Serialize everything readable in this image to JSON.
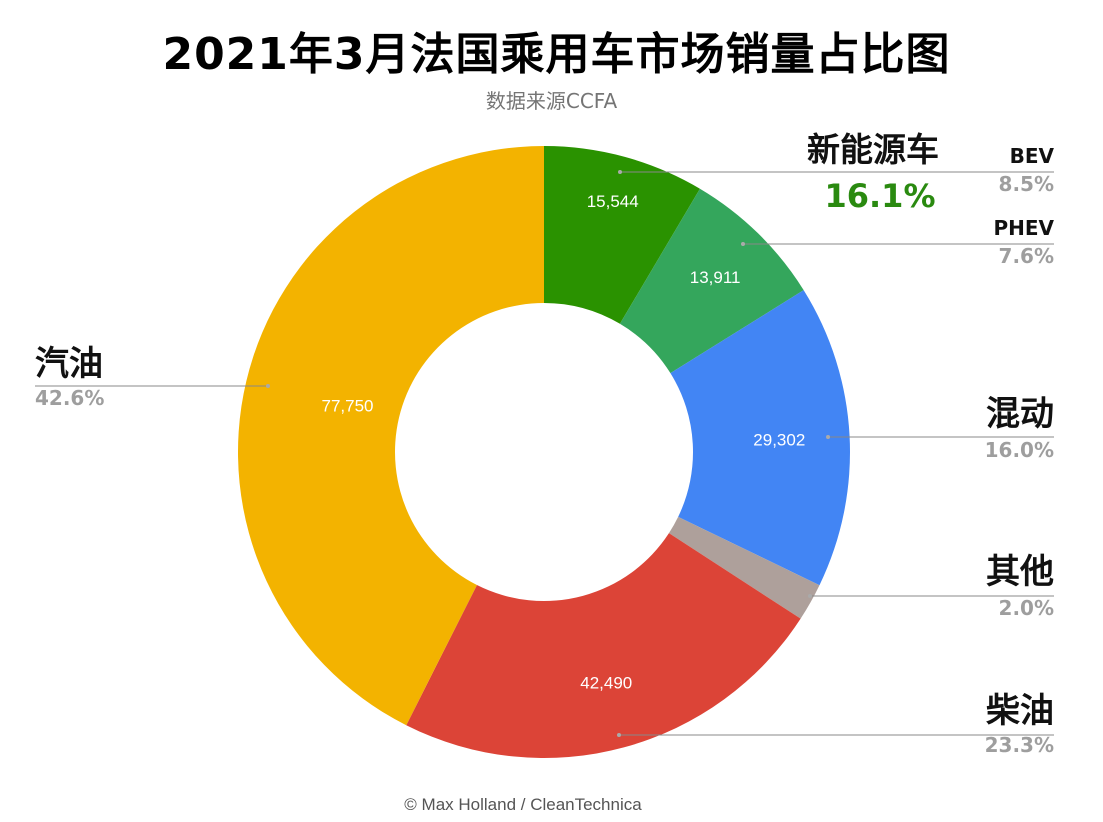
{
  "title": "2021年3月法国乘用车市场销量占比图",
  "subtitle": "数据来源CCFA",
  "credit": "© Max Holland / CleanTechnica",
  "group_label": "新能源车",
  "group_pct": "16.1%",
  "colors": {
    "bev": "#2a9200",
    "phev": "#34a65c",
    "hybrid": "#4285f4",
    "other": "#aea09b",
    "diesel": "#dc4437",
    "petrol": "#f3b300",
    "group_pct": "#2a8a10",
    "leader": "#888888"
  },
  "chart_data": {
    "type": "pie",
    "variant": "donut",
    "title": "2021年3月法国乘用车市场销量占比图",
    "subtitle": "数据来源CCFA",
    "slices": [
      {
        "key": "bev",
        "label": "BEV",
        "value": 15544,
        "value_label": "15,544",
        "pct": "8.5%"
      },
      {
        "key": "phev",
        "label": "PHEV",
        "value": 13911,
        "value_label": "13,911",
        "pct": "7.6%"
      },
      {
        "key": "hybrid",
        "label": "混动",
        "value": 29302,
        "value_label": "29,302",
        "pct": "16.0%"
      },
      {
        "key": "other",
        "label": "其他",
        "value": 3650,
        "value_label": "",
        "pct": "2.0%"
      },
      {
        "key": "diesel",
        "label": "柴油",
        "value": 42490,
        "value_label": "42,490",
        "pct": "23.3%"
      },
      {
        "key": "petrol",
        "label": "汽油",
        "value": 77750,
        "value_label": "77,750",
        "pct": "42.6%"
      }
    ],
    "group": {
      "label": "新能源车",
      "pct": "16.1%",
      "members": [
        "BEV",
        "PHEV"
      ]
    }
  }
}
